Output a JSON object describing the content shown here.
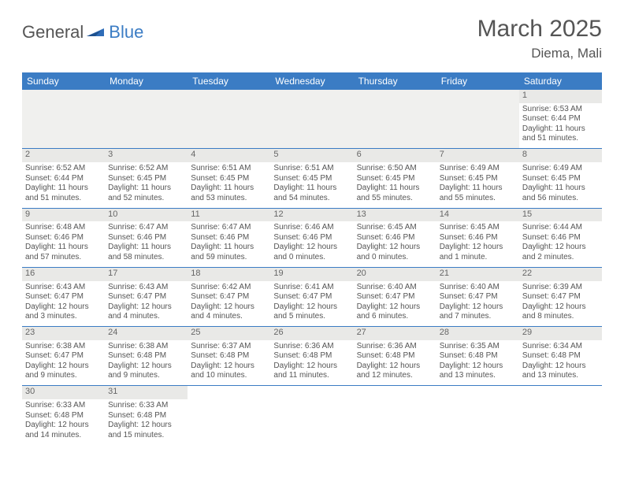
{
  "logo": {
    "general": "General",
    "blue": "Blue"
  },
  "title": "March 2025",
  "location": "Diema, Mali",
  "colors": {
    "header_bg": "#3b7cc4",
    "header_text": "#ffffff",
    "daynum_bg": "#e9e9e7",
    "border": "#3b7cc4",
    "text": "#555555"
  },
  "days_of_week": [
    "Sunday",
    "Monday",
    "Tuesday",
    "Wednesday",
    "Thursday",
    "Friday",
    "Saturday"
  ],
  "weeks": [
    [
      null,
      null,
      null,
      null,
      null,
      null,
      {
        "n": "1",
        "sr": "Sunrise: 6:53 AM",
        "ss": "Sunset: 6:44 PM",
        "dl": "Daylight: 11 hours and 51 minutes."
      }
    ],
    [
      {
        "n": "2",
        "sr": "Sunrise: 6:52 AM",
        "ss": "Sunset: 6:44 PM",
        "dl": "Daylight: 11 hours and 51 minutes."
      },
      {
        "n": "3",
        "sr": "Sunrise: 6:52 AM",
        "ss": "Sunset: 6:45 PM",
        "dl": "Daylight: 11 hours and 52 minutes."
      },
      {
        "n": "4",
        "sr": "Sunrise: 6:51 AM",
        "ss": "Sunset: 6:45 PM",
        "dl": "Daylight: 11 hours and 53 minutes."
      },
      {
        "n": "5",
        "sr": "Sunrise: 6:51 AM",
        "ss": "Sunset: 6:45 PM",
        "dl": "Daylight: 11 hours and 54 minutes."
      },
      {
        "n": "6",
        "sr": "Sunrise: 6:50 AM",
        "ss": "Sunset: 6:45 PM",
        "dl": "Daylight: 11 hours and 55 minutes."
      },
      {
        "n": "7",
        "sr": "Sunrise: 6:49 AM",
        "ss": "Sunset: 6:45 PM",
        "dl": "Daylight: 11 hours and 55 minutes."
      },
      {
        "n": "8",
        "sr": "Sunrise: 6:49 AM",
        "ss": "Sunset: 6:45 PM",
        "dl": "Daylight: 11 hours and 56 minutes."
      }
    ],
    [
      {
        "n": "9",
        "sr": "Sunrise: 6:48 AM",
        "ss": "Sunset: 6:46 PM",
        "dl": "Daylight: 11 hours and 57 minutes."
      },
      {
        "n": "10",
        "sr": "Sunrise: 6:47 AM",
        "ss": "Sunset: 6:46 PM",
        "dl": "Daylight: 11 hours and 58 minutes."
      },
      {
        "n": "11",
        "sr": "Sunrise: 6:47 AM",
        "ss": "Sunset: 6:46 PM",
        "dl": "Daylight: 11 hours and 59 minutes."
      },
      {
        "n": "12",
        "sr": "Sunrise: 6:46 AM",
        "ss": "Sunset: 6:46 PM",
        "dl": "Daylight: 12 hours and 0 minutes."
      },
      {
        "n": "13",
        "sr": "Sunrise: 6:45 AM",
        "ss": "Sunset: 6:46 PM",
        "dl": "Daylight: 12 hours and 0 minutes."
      },
      {
        "n": "14",
        "sr": "Sunrise: 6:45 AM",
        "ss": "Sunset: 6:46 PM",
        "dl": "Daylight: 12 hours and 1 minute."
      },
      {
        "n": "15",
        "sr": "Sunrise: 6:44 AM",
        "ss": "Sunset: 6:46 PM",
        "dl": "Daylight: 12 hours and 2 minutes."
      }
    ],
    [
      {
        "n": "16",
        "sr": "Sunrise: 6:43 AM",
        "ss": "Sunset: 6:47 PM",
        "dl": "Daylight: 12 hours and 3 minutes."
      },
      {
        "n": "17",
        "sr": "Sunrise: 6:43 AM",
        "ss": "Sunset: 6:47 PM",
        "dl": "Daylight: 12 hours and 4 minutes."
      },
      {
        "n": "18",
        "sr": "Sunrise: 6:42 AM",
        "ss": "Sunset: 6:47 PM",
        "dl": "Daylight: 12 hours and 4 minutes."
      },
      {
        "n": "19",
        "sr": "Sunrise: 6:41 AM",
        "ss": "Sunset: 6:47 PM",
        "dl": "Daylight: 12 hours and 5 minutes."
      },
      {
        "n": "20",
        "sr": "Sunrise: 6:40 AM",
        "ss": "Sunset: 6:47 PM",
        "dl": "Daylight: 12 hours and 6 minutes."
      },
      {
        "n": "21",
        "sr": "Sunrise: 6:40 AM",
        "ss": "Sunset: 6:47 PM",
        "dl": "Daylight: 12 hours and 7 minutes."
      },
      {
        "n": "22",
        "sr": "Sunrise: 6:39 AM",
        "ss": "Sunset: 6:47 PM",
        "dl": "Daylight: 12 hours and 8 minutes."
      }
    ],
    [
      {
        "n": "23",
        "sr": "Sunrise: 6:38 AM",
        "ss": "Sunset: 6:47 PM",
        "dl": "Daylight: 12 hours and 9 minutes."
      },
      {
        "n": "24",
        "sr": "Sunrise: 6:38 AM",
        "ss": "Sunset: 6:48 PM",
        "dl": "Daylight: 12 hours and 9 minutes."
      },
      {
        "n": "25",
        "sr": "Sunrise: 6:37 AM",
        "ss": "Sunset: 6:48 PM",
        "dl": "Daylight: 12 hours and 10 minutes."
      },
      {
        "n": "26",
        "sr": "Sunrise: 6:36 AM",
        "ss": "Sunset: 6:48 PM",
        "dl": "Daylight: 12 hours and 11 minutes."
      },
      {
        "n": "27",
        "sr": "Sunrise: 6:36 AM",
        "ss": "Sunset: 6:48 PM",
        "dl": "Daylight: 12 hours and 12 minutes."
      },
      {
        "n": "28",
        "sr": "Sunrise: 6:35 AM",
        "ss": "Sunset: 6:48 PM",
        "dl": "Daylight: 12 hours and 13 minutes."
      },
      {
        "n": "29",
        "sr": "Sunrise: 6:34 AM",
        "ss": "Sunset: 6:48 PM",
        "dl": "Daylight: 12 hours and 13 minutes."
      }
    ],
    [
      {
        "n": "30",
        "sr": "Sunrise: 6:33 AM",
        "ss": "Sunset: 6:48 PM",
        "dl": "Daylight: 12 hours and 14 minutes."
      },
      {
        "n": "31",
        "sr": "Sunrise: 6:33 AM",
        "ss": "Sunset: 6:48 PM",
        "dl": "Daylight: 12 hours and 15 minutes."
      },
      null,
      null,
      null,
      null,
      null
    ]
  ]
}
